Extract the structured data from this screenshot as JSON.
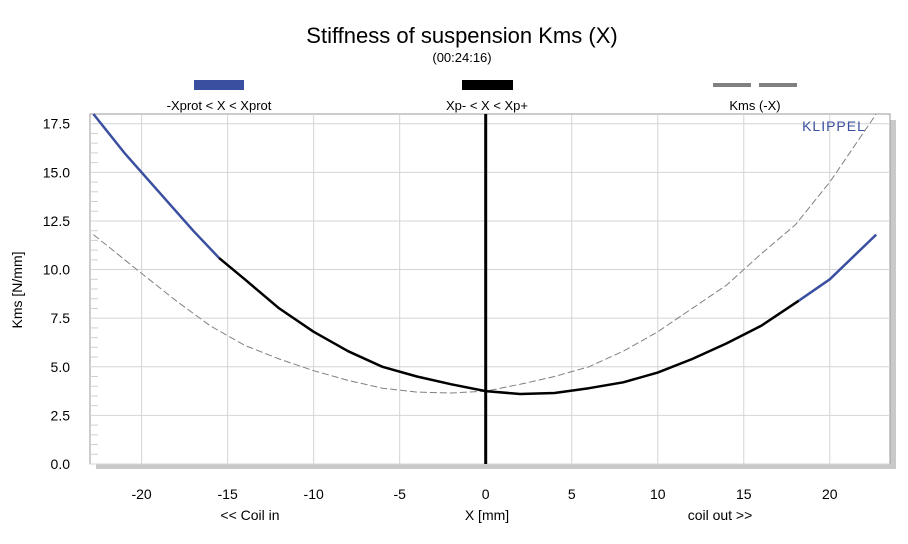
{
  "chart_data": {
    "type": "line",
    "title": "Stiffness of suspension Kms (X)",
    "subtitle": "(00:24:16)",
    "xlabel": "X [mm]",
    "xlabel_left": "<< Coil in",
    "xlabel_right": "coil out >>",
    "ylabel": "Kms [N/mm]",
    "brand": "KLIPPEL",
    "xlim": [
      -23,
      23.5
    ],
    "ylim": [
      0,
      18
    ],
    "xticks": [
      -20,
      -15,
      -10,
      -5,
      0,
      5,
      10,
      15,
      20
    ],
    "xtick_labels": [
      "-20",
      "-15",
      "-10",
      "-5",
      "0",
      "5",
      "10",
      "15",
      "20"
    ],
    "yticks": [
      0,
      2.5,
      5,
      7.5,
      10,
      12.5,
      15,
      17.5
    ],
    "ytick_labels": [
      "0.0",
      "2.5",
      "5.0",
      "7.5",
      "10.0",
      "12.5",
      "15.0",
      "17.5"
    ],
    "grid": true,
    "legend": [
      {
        "label": "-Xprot < X < Xprot",
        "color": "#3b4fa0",
        "style": "solid"
      },
      {
        "label": "Xp- < X < Xp+",
        "color": "#000000",
        "style": "solid"
      },
      {
        "label": "Kms (-X)",
        "color": "#808080",
        "style": "dashed"
      }
    ],
    "marker_x": 0,
    "x_p_minus": -15.5,
    "x_p_plus": 18.2,
    "series": [
      {
        "name": "Kms (X)",
        "x": [
          -22.8,
          -21,
          -19,
          -17,
          -15.5,
          -14,
          -12,
          -10,
          -8,
          -6,
          -4,
          -2,
          0,
          2,
          4,
          6,
          8,
          10,
          12,
          14,
          16,
          18.2,
          20,
          22.7
        ],
        "y": [
          18.0,
          16.0,
          14.0,
          12.0,
          10.6,
          9.5,
          8.0,
          6.8,
          5.8,
          5.0,
          4.5,
          4.1,
          3.75,
          3.6,
          3.65,
          3.9,
          4.2,
          4.7,
          5.4,
          6.2,
          7.1,
          8.4,
          9.5,
          11.8
        ]
      },
      {
        "name": "Kms (-X)",
        "x": [
          -22.8,
          -20,
          -18,
          -16,
          -14,
          -12,
          -10,
          -8,
          -6,
          -4,
          -2,
          0,
          2,
          4,
          6,
          8,
          10,
          12,
          14,
          16,
          18,
          20,
          22.7
        ],
        "y": [
          11.8,
          9.8,
          8.4,
          7.1,
          6.1,
          5.4,
          4.8,
          4.3,
          3.9,
          3.7,
          3.65,
          3.75,
          4.1,
          4.5,
          5.0,
          5.8,
          6.8,
          8.0,
          9.2,
          10.8,
          12.3,
          14.5,
          18.0
        ]
      }
    ]
  }
}
